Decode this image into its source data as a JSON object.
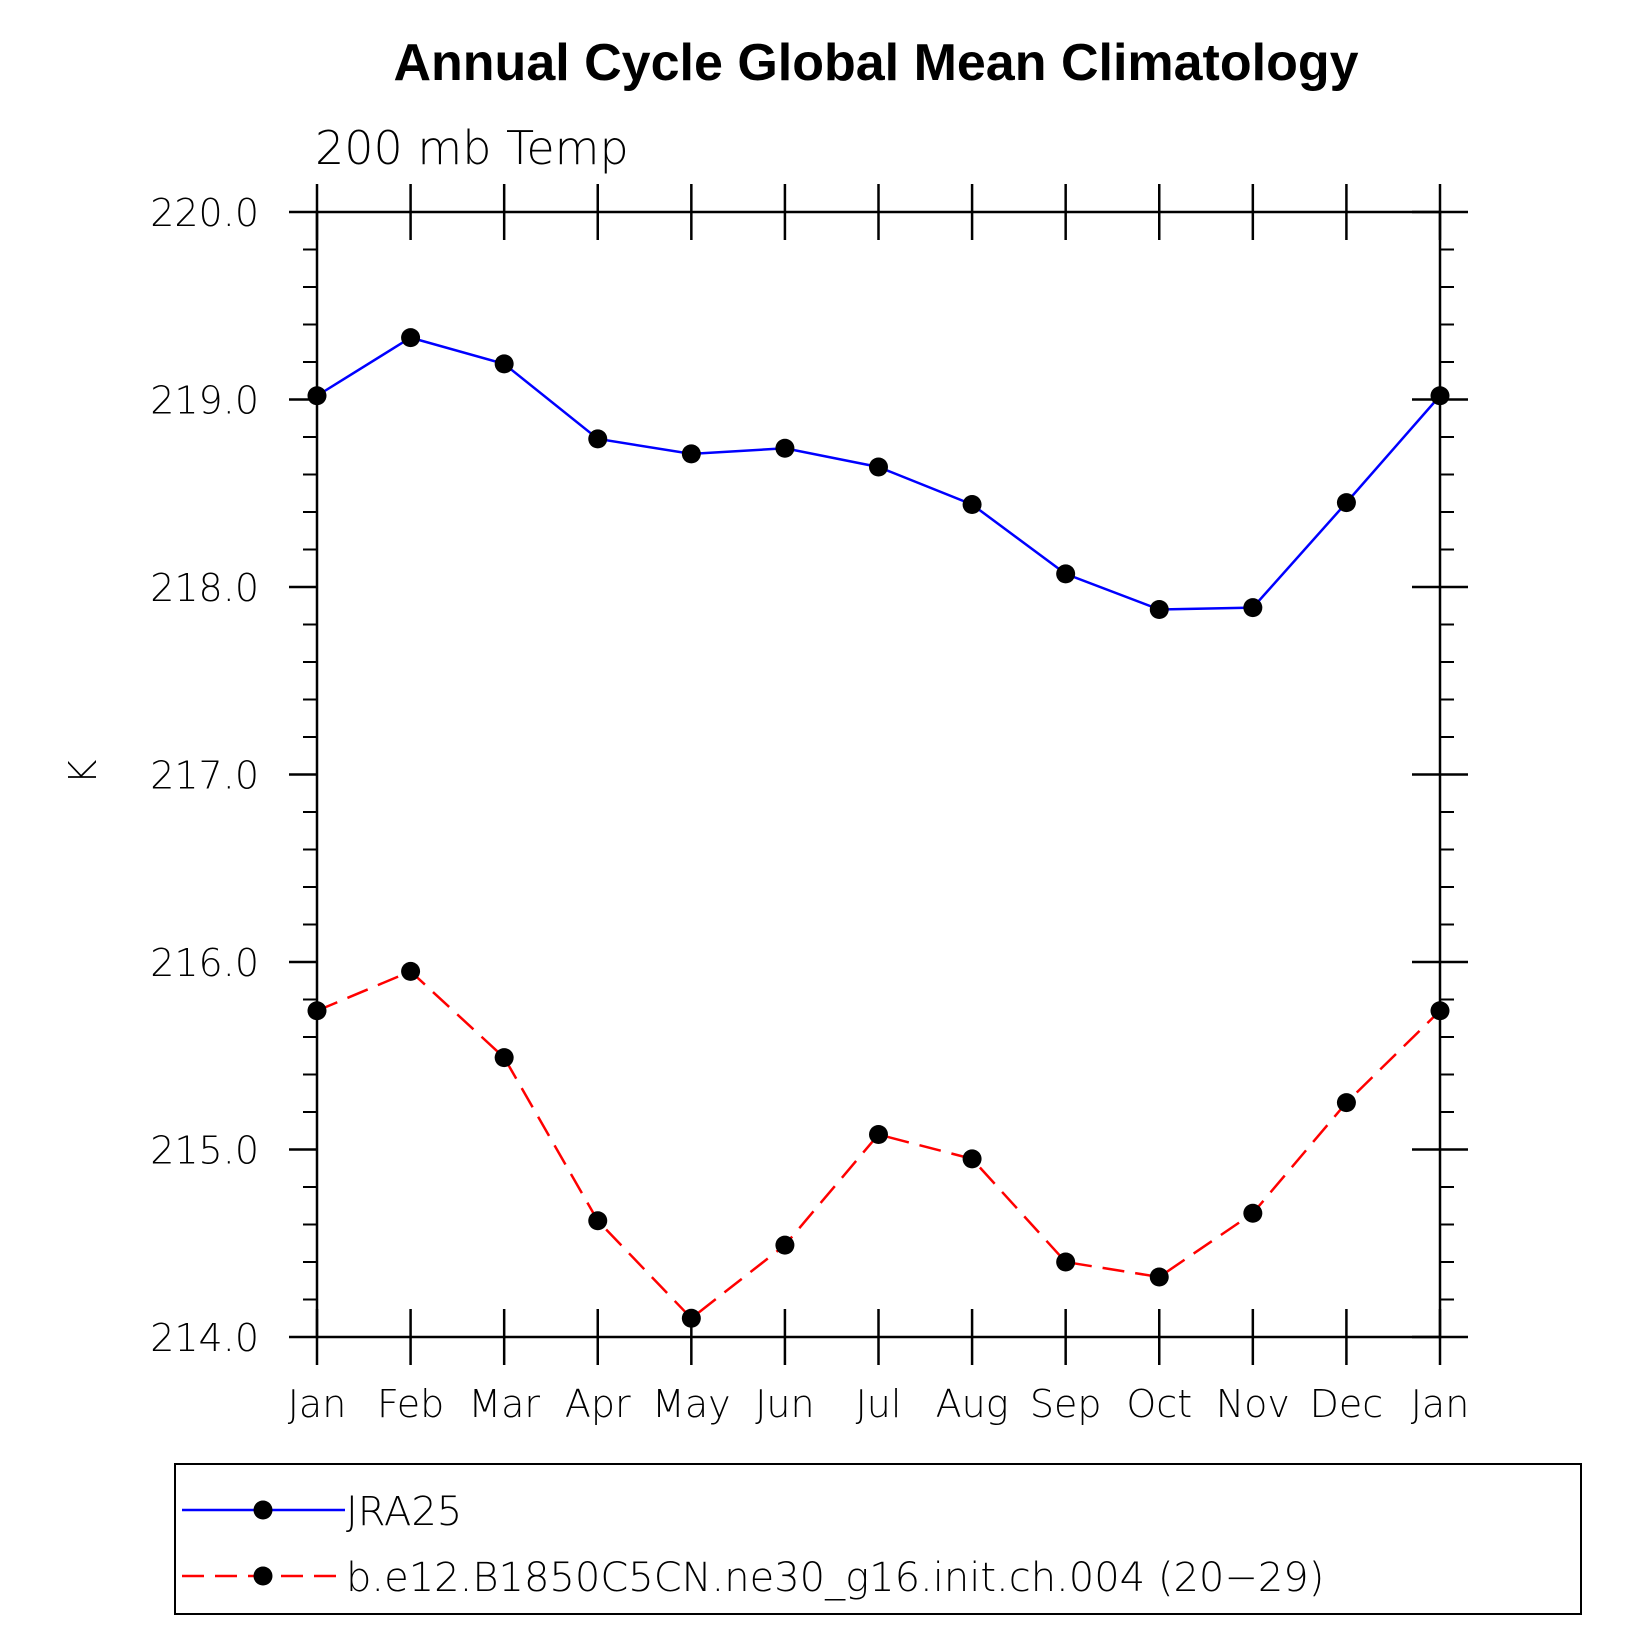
{
  "chart_data": {
    "type": "line",
    "title": "Annual Cycle Global Mean Climatology",
    "subtitle": "200 mb Temp",
    "xlabel": "",
    "ylabel": "K",
    "categories": [
      "Jan",
      "Feb",
      "Mar",
      "Apr",
      "May",
      "Jun",
      "Jul",
      "Aug",
      "Sep",
      "Oct",
      "Nov",
      "Dec",
      "Jan"
    ],
    "ylim": [
      214.0,
      220.0
    ],
    "y_ticks": [
      "214.0",
      "215.0",
      "216.0",
      "217.0",
      "218.0",
      "219.0",
      "220.0"
    ],
    "y_minor_step": 0.2,
    "grid": false,
    "legend_position": "bottom",
    "series": [
      {
        "name": "JRA25",
        "color": "#0000ff",
        "line_style": "solid",
        "marker": "filled-circle",
        "values": [
          219.02,
          219.33,
          219.19,
          218.79,
          218.71,
          218.74,
          218.64,
          218.44,
          218.07,
          217.88,
          217.89,
          218.45,
          219.02
        ]
      },
      {
        "name": "b.e12.B1850C5CN.ne30_g16.init.ch.004 (20−29)",
        "color": "#ff0000",
        "line_style": "dashed",
        "marker": "filled-circle",
        "values": [
          215.74,
          215.95,
          215.49,
          214.62,
          214.1,
          214.49,
          215.08,
          214.95,
          214.4,
          214.32,
          214.66,
          215.25,
          215.74
        ]
      }
    ]
  }
}
